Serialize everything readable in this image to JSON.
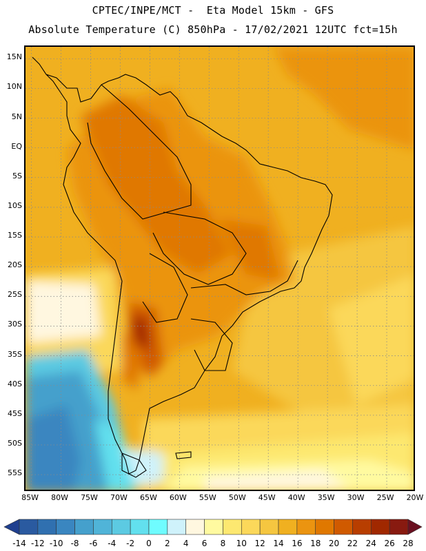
{
  "header": {
    "line1": "CPTEC/INPE/MCT -  Eta Model 15km - GFS",
    "line2": "Absolute Temperature (C) 850hPa - 17/02/2021 12UTC fct=15h"
  },
  "axes": {
    "lat_labels": [
      "15N",
      "10N",
      "5N",
      "EQ",
      "5S",
      "10S",
      "15S",
      "20S",
      "25S",
      "30S",
      "35S",
      "40S",
      "45S",
      "50S",
      "55S"
    ],
    "lat_values": [
      15,
      10,
      5,
      0,
      -5,
      -10,
      -15,
      -20,
      -25,
      -30,
      -35,
      -40,
      -45,
      -50,
      -55
    ],
    "lon_labels": [
      "85W",
      "80W",
      "75W",
      "70W",
      "65W",
      "60W",
      "55W",
      "50W",
      "45W",
      "40W",
      "35W",
      "30W",
      "25W",
      "20W"
    ],
    "lon_values": [
      -85,
      -80,
      -75,
      -70,
      -65,
      -60,
      -55,
      -50,
      -45,
      -40,
      -35,
      -30,
      -25,
      -20
    ],
    "lat_range": [
      -58,
      17
    ],
    "lon_range": [
      -86,
      -20
    ]
  },
  "colorbar": {
    "labels": [
      "-14",
      "-12",
      "-10",
      "-8",
      "-6",
      "-4",
      "-2",
      "0",
      "2",
      "4",
      "6",
      "8",
      "10",
      "12",
      "14",
      "16",
      "18",
      "20",
      "22",
      "24",
      "26",
      "28"
    ],
    "colors": [
      "#1f3f8f",
      "#2a5aa0",
      "#3070b0",
      "#3a86c0",
      "#45a0cc",
      "#50b4d8",
      "#5ccae2",
      "#62e0ee",
      "#6ffcff",
      "#cff2fb",
      "#fff7e0",
      "#fffaa0",
      "#fde870",
      "#fbd85a",
      "#f5c640",
      "#f0b020",
      "#eb9410",
      "#e07800",
      "#d05a00",
      "#b83e00",
      "#a02800",
      "#881a10",
      "#6a1020"
    ]
  },
  "colors": {
    "ocean_base": "#f0b020",
    "frame": "#000000"
  }
}
